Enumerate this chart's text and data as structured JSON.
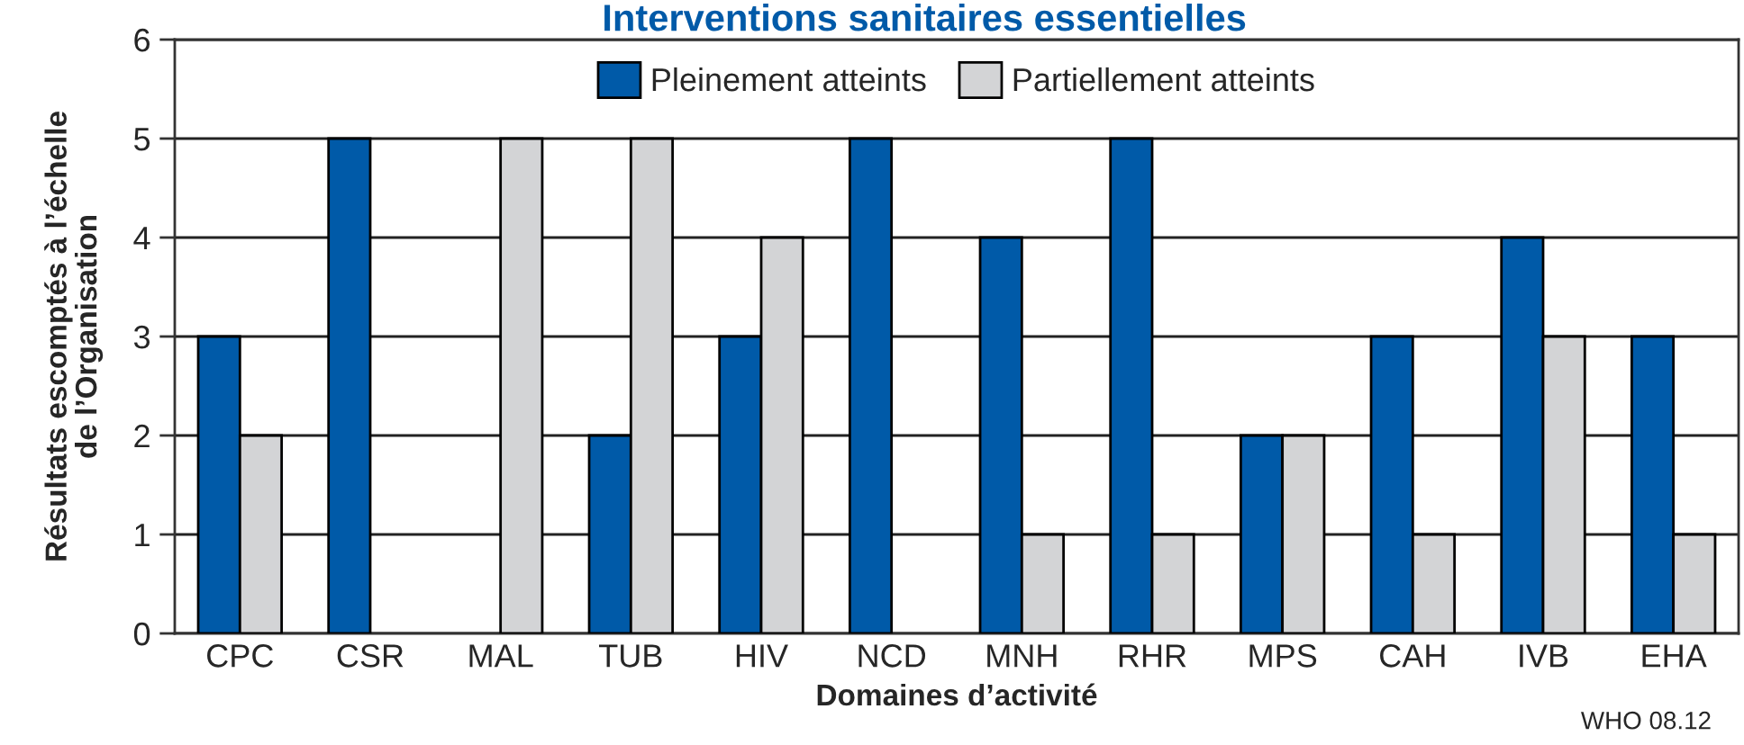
{
  "chart_data": {
    "type": "bar",
    "title": "Interventions sanitaires essentielles",
    "xlabel": "Domaines d’activité",
    "ylabel": "Résultats escomptés à l’échelle\nde l’Organisation",
    "categories": [
      "CPC",
      "CSR",
      "MAL",
      "TUB",
      "HIV",
      "NCD",
      "MNH",
      "RHR",
      "MPS",
      "CAH",
      "IVB",
      "EHA"
    ],
    "series": [
      {
        "name": "Pleinement atteints",
        "color": "#005aa8",
        "values": [
          3,
          5,
          null,
          2,
          3,
          5,
          4,
          5,
          2,
          3,
          4,
          3
        ]
      },
      {
        "name": "Partiellement atteints",
        "color": "#d3d4d6",
        "values": [
          2,
          null,
          5,
          5,
          4,
          null,
          1,
          1,
          2,
          1,
          3,
          1
        ]
      }
    ],
    "ylim": [
      0,
      6
    ],
    "yticks": [
      0,
      1,
      2,
      3,
      4,
      5,
      6
    ],
    "grid": "y",
    "legend": "top",
    "annotations": [
      "WHO 08.12"
    ]
  }
}
